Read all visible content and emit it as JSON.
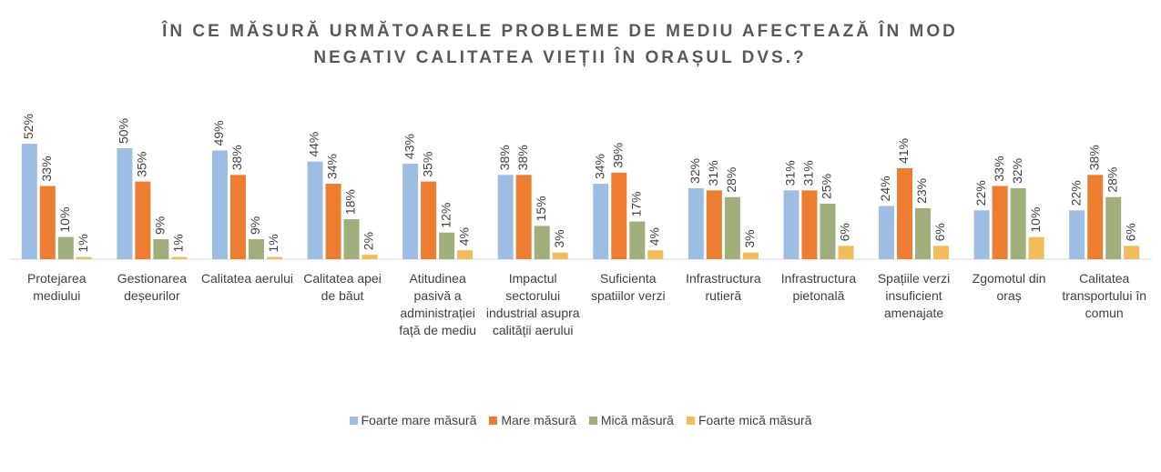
{
  "chart_data": {
    "type": "bar",
    "title": "ÎN CE MĂSURĂ URMĂTOARELE PROBLEME DE MEDIU AFECTEAZĂ ÎN MOD NEGATIV CALITATEA VIEȚII ÎN ORAȘUL DVS.?",
    "categories": [
      "Protejarea mediului",
      "Gestionarea deșeurilor",
      "Calitatea aerului",
      "Calitatea apei de băut",
      "Atitudinea pasivă a administrației față de mediu",
      "Impactul sectorului industrial asupra calității aerului",
      "Suficienta spatiilor verzi",
      "Infrastructura rutieră",
      "Infrastructura pietonală",
      "Spațiile verzi insuficient amenajate",
      "Zgomotul din oraș",
      "Calitatea transportului în comun"
    ],
    "series": [
      {
        "name": "Foarte mare măsură",
        "color": "#9dbde3",
        "values": [
          52,
          50,
          49,
          44,
          43,
          38,
          34,
          32,
          31,
          24,
          22,
          22
        ],
        "value_labels": [
          "52%",
          "50%",
          "49%",
          "44%",
          "43%",
          "38%",
          "34%",
          "32%",
          "31%",
          "24%",
          "22%",
          "22%"
        ]
      },
      {
        "name": "Mare măsură",
        "color": "#ed7d31",
        "values": [
          33,
          35,
          38,
          34,
          35,
          38,
          39,
          31,
          31,
          41,
          33,
          38
        ],
        "value_labels": [
          "33%",
          "35%",
          "38%",
          "34%",
          "35%",
          "38%",
          "39%",
          "31%",
          "31%",
          "41%",
          "33%",
          "38%"
        ]
      },
      {
        "name": "Mică măsură",
        "color": "#9fae7a",
        "values": [
          10,
          9,
          9,
          18,
          12,
          15,
          17,
          28,
          25,
          23,
          32,
          28
        ],
        "value_labels": [
          "10%",
          "9%",
          "9%",
          "18%",
          "12%",
          "15%",
          "17%",
          "28%",
          "25%",
          "23%",
          "32%",
          "28%"
        ]
      },
      {
        "name": "Foarte mică măsură",
        "color": "#f2bb5c",
        "values": [
          1,
          1,
          1,
          2,
          4,
          3,
          4,
          3,
          6,
          6,
          10,
          6
        ],
        "value_labels": [
          "1%",
          "1%",
          "1%",
          "2%",
          "4%",
          "3%",
          "4%",
          "3%",
          "6%",
          "6%",
          "10%",
          "6%"
        ]
      }
    ],
    "legend": "bottom"
  }
}
